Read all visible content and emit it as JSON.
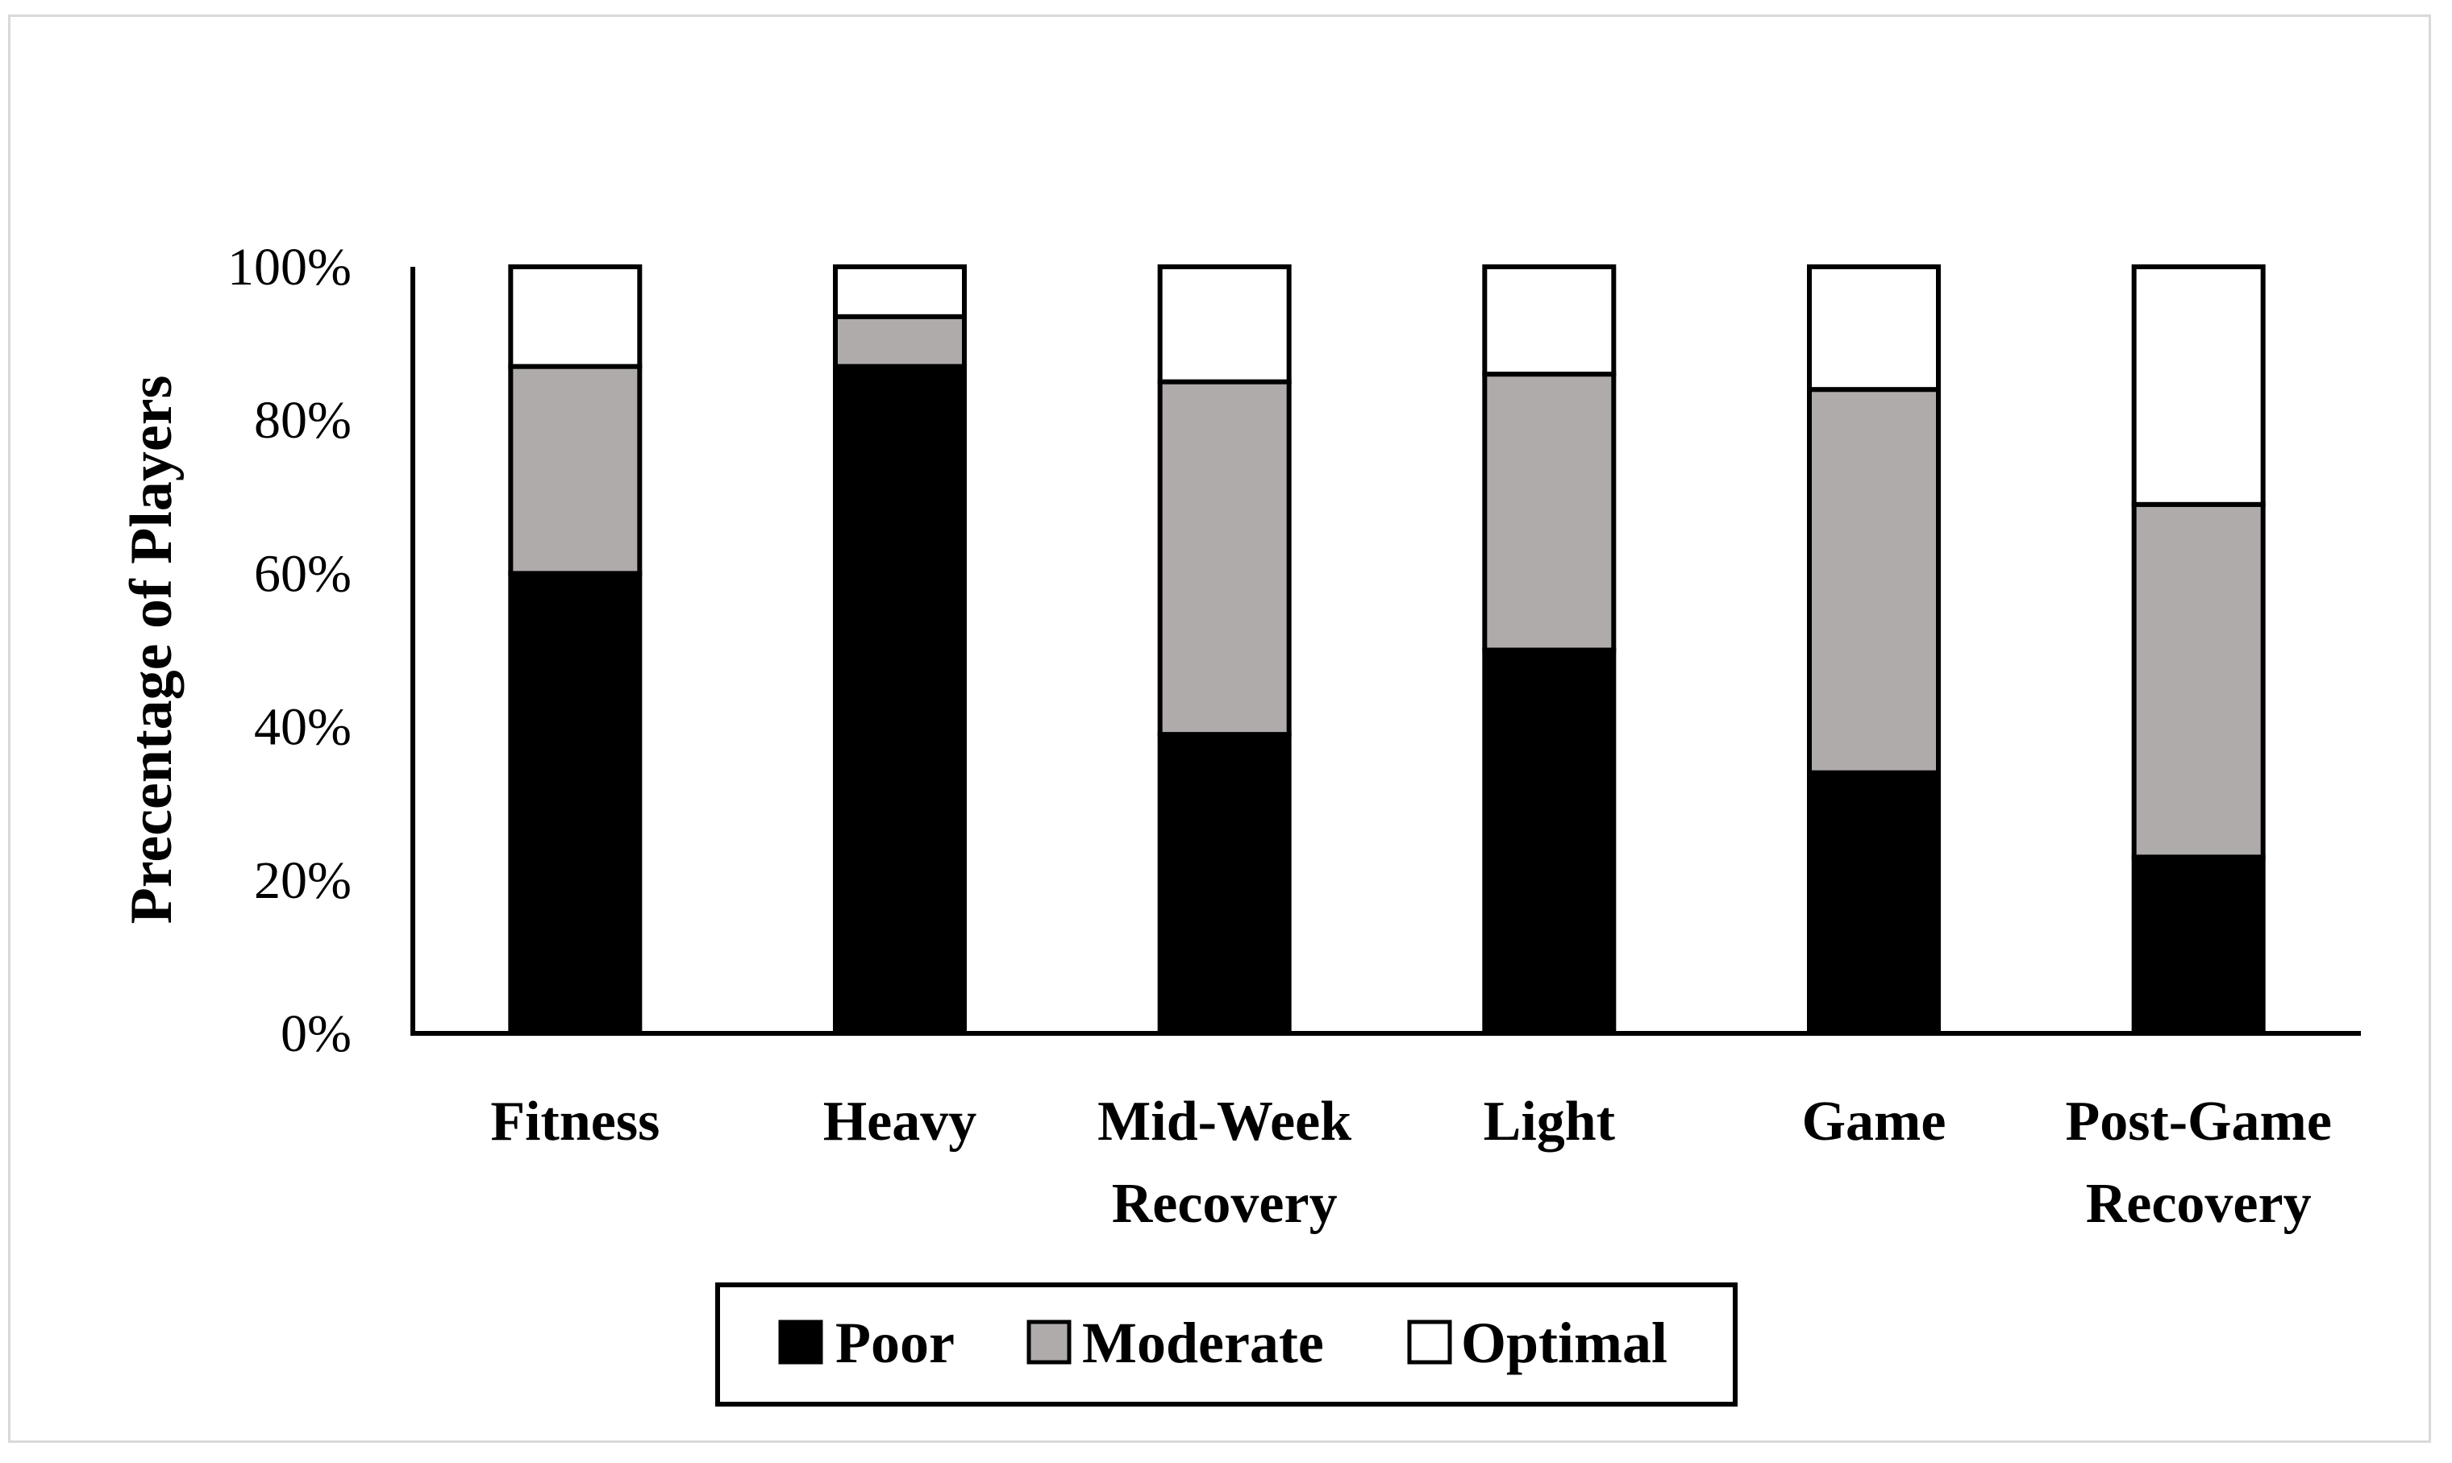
{
  "chart_data": {
    "type": "bar",
    "stacked": true,
    "percent": true,
    "title": "",
    "xlabel": "",
    "ylabel": "Precentage of Players",
    "ylim": [
      0,
      100
    ],
    "yticks": [
      "0%",
      "20%",
      "40%",
      "60%",
      "80%",
      "100%"
    ],
    "categories": [
      [
        "Fitness"
      ],
      [
        "Heavy"
      ],
      [
        "Mid-Week",
        "Recovery"
      ],
      [
        "Light"
      ],
      [
        "Game"
      ],
      [
        "Post-Game",
        "Recovery"
      ]
    ],
    "series": [
      {
        "name": "Poor",
        "color": "#000000",
        "values": [
          60,
          87,
          39,
          50,
          34,
          23
        ]
      },
      {
        "name": "Moderate",
        "color": "#afabab",
        "values": [
          27,
          6.5,
          46,
          36,
          50,
          46
        ]
      },
      {
        "name": "Optimal",
        "color": "#ffffff",
        "values": [
          13,
          6.5,
          15,
          14,
          16,
          31
        ]
      }
    ],
    "legend": {
      "position": "bottom"
    }
  }
}
